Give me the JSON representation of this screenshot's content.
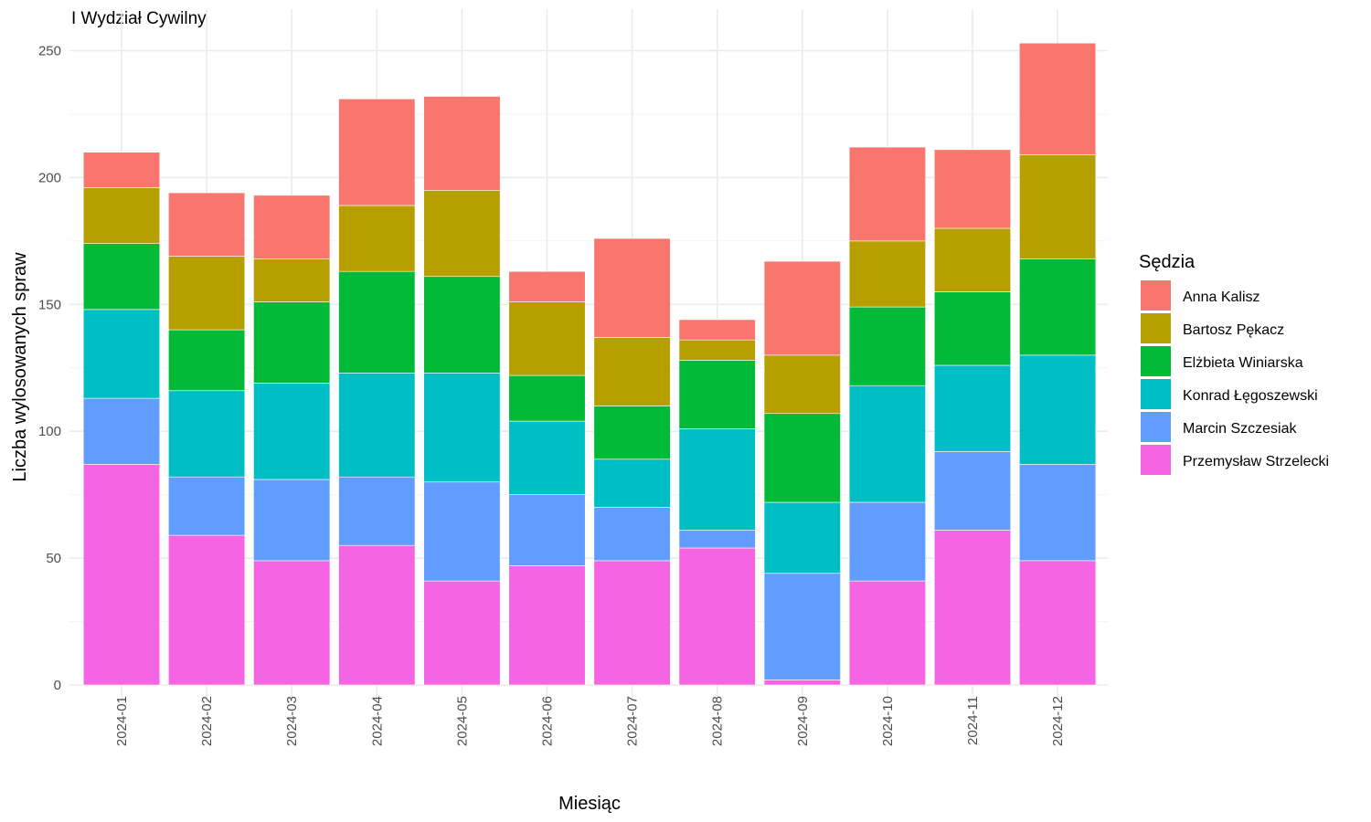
{
  "chart_data": {
    "type": "bar",
    "stacked": true,
    "title": "I Wydział Cywilny",
    "xlabel": "Miesiąc",
    "ylabel": "Liczba wylosowanych spraw",
    "ylim": [
      0,
      260
    ],
    "yticks": [
      0,
      50,
      100,
      150,
      200,
      250
    ],
    "grid": true,
    "legend": {
      "title": "Sędzia",
      "position": "right"
    },
    "categories": [
      "2024-01",
      "2024-02",
      "2024-03",
      "2024-04",
      "2024-05",
      "2024-06",
      "2024-07",
      "2024-08",
      "2024-09",
      "2024-10",
      "2024-11",
      "2024-12"
    ],
    "series": [
      {
        "name": "Przemysław Strzelecki",
        "color": "#F564E3",
        "values": [
          87,
          59,
          49,
          55,
          41,
          47,
          49,
          54,
          2,
          41,
          61,
          49
        ]
      },
      {
        "name": "Marcin Szczesiak",
        "color": "#619CFF",
        "values": [
          26,
          23,
          32,
          27,
          39,
          28,
          21,
          7,
          42,
          31,
          31,
          38
        ]
      },
      {
        "name": "Konrad Łęgoszewski",
        "color": "#00BFC4",
        "values": [
          35,
          34,
          38,
          41,
          43,
          29,
          19,
          40,
          28,
          46,
          34,
          43
        ]
      },
      {
        "name": "Elżbieta Winiarska",
        "color": "#00BA38",
        "values": [
          26,
          24,
          32,
          40,
          38,
          18,
          21,
          27,
          35,
          31,
          29,
          38
        ]
      },
      {
        "name": "Bartosz Pękacz",
        "color": "#B79F00",
        "values": [
          22,
          29,
          17,
          26,
          34,
          29,
          27,
          8,
          23,
          26,
          25,
          41
        ]
      },
      {
        "name": "Anna Kalisz",
        "color": "#F8766D",
        "values": [
          14,
          25,
          25,
          42,
          37,
          12,
          39,
          8,
          37,
          37,
          31,
          44
        ]
      }
    ]
  }
}
